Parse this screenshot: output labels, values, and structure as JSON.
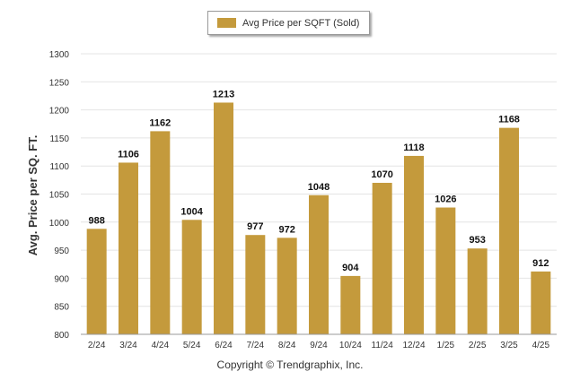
{
  "chart_data": {
    "type": "bar",
    "categories": [
      "2/24",
      "3/24",
      "4/24",
      "5/24",
      "6/24",
      "7/24",
      "8/24",
      "9/24",
      "10/24",
      "11/24",
      "12/24",
      "1/25",
      "2/25",
      "3/25",
      "4/25"
    ],
    "series": [
      {
        "name": "Avg Price per SQFT (Sold)",
        "values": [
          988,
          1106,
          1162,
          1004,
          1213,
          977,
          972,
          1048,
          904,
          1070,
          1118,
          1026,
          953,
          1168,
          912
        ]
      }
    ],
    "ylabel": "Avg. Price per SQ. FT.",
    "ylim": [
      800,
      1300
    ],
    "yticks": [
      800,
      850,
      900,
      950,
      1000,
      1050,
      1100,
      1150,
      1200,
      1250,
      1300
    ],
    "grid": true,
    "legend_position": "top-center",
    "data_labels": true
  },
  "colors": {
    "bar": "#c49a3c",
    "grid": "#e4e4e4",
    "axis": "#c8c8c8",
    "text": "#333333"
  },
  "footer": {
    "text": "Copyright © Trendgraphix, Inc."
  }
}
